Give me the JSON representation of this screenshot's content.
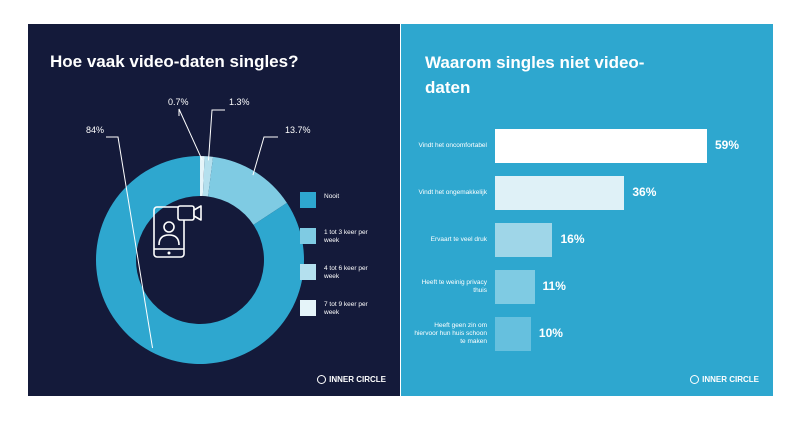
{
  "chart_data": [
    {
      "type": "pie",
      "title": "Hoe vaak video-daten singles?",
      "categories": [
        "Nooit",
        "1 tot 3 keer per week",
        "4 tot 6 keer per week",
        "7 tot 9 keer per week"
      ],
      "values": [
        84,
        13.7,
        1.3,
        0.7
      ],
      "value_labels": [
        "84%",
        "13.7%",
        "1.3%",
        "0.7%"
      ],
      "colors": [
        "#2ea7cf",
        "#7fcbe3",
        "#b4e0ee",
        "#e5f4f9"
      ],
      "legend_position": "right"
    },
    {
      "type": "bar",
      "orientation": "horizontal",
      "title": "Waarom singles niet video-daten",
      "categories": [
        "Vindt het oncomfortabel",
        "Vindt het ongemakkelijk",
        "Ervaart te veel druk",
        "Heeft te weinig privacy thuis",
        "Heeft geen zin om hiervoor hun huis schoon te maken"
      ],
      "values": [
        59,
        36,
        16,
        11,
        10
      ],
      "value_labels": [
        "59%",
        "36%",
        "16%",
        "11%",
        "10%"
      ],
      "colors": [
        "#ffffff",
        "#dff1f7",
        "#9fd6e8",
        "#7fcbe3",
        "#66c0de"
      ],
      "xlim": [
        0,
        59
      ]
    }
  ],
  "brand": "INNER CIRCLE"
}
